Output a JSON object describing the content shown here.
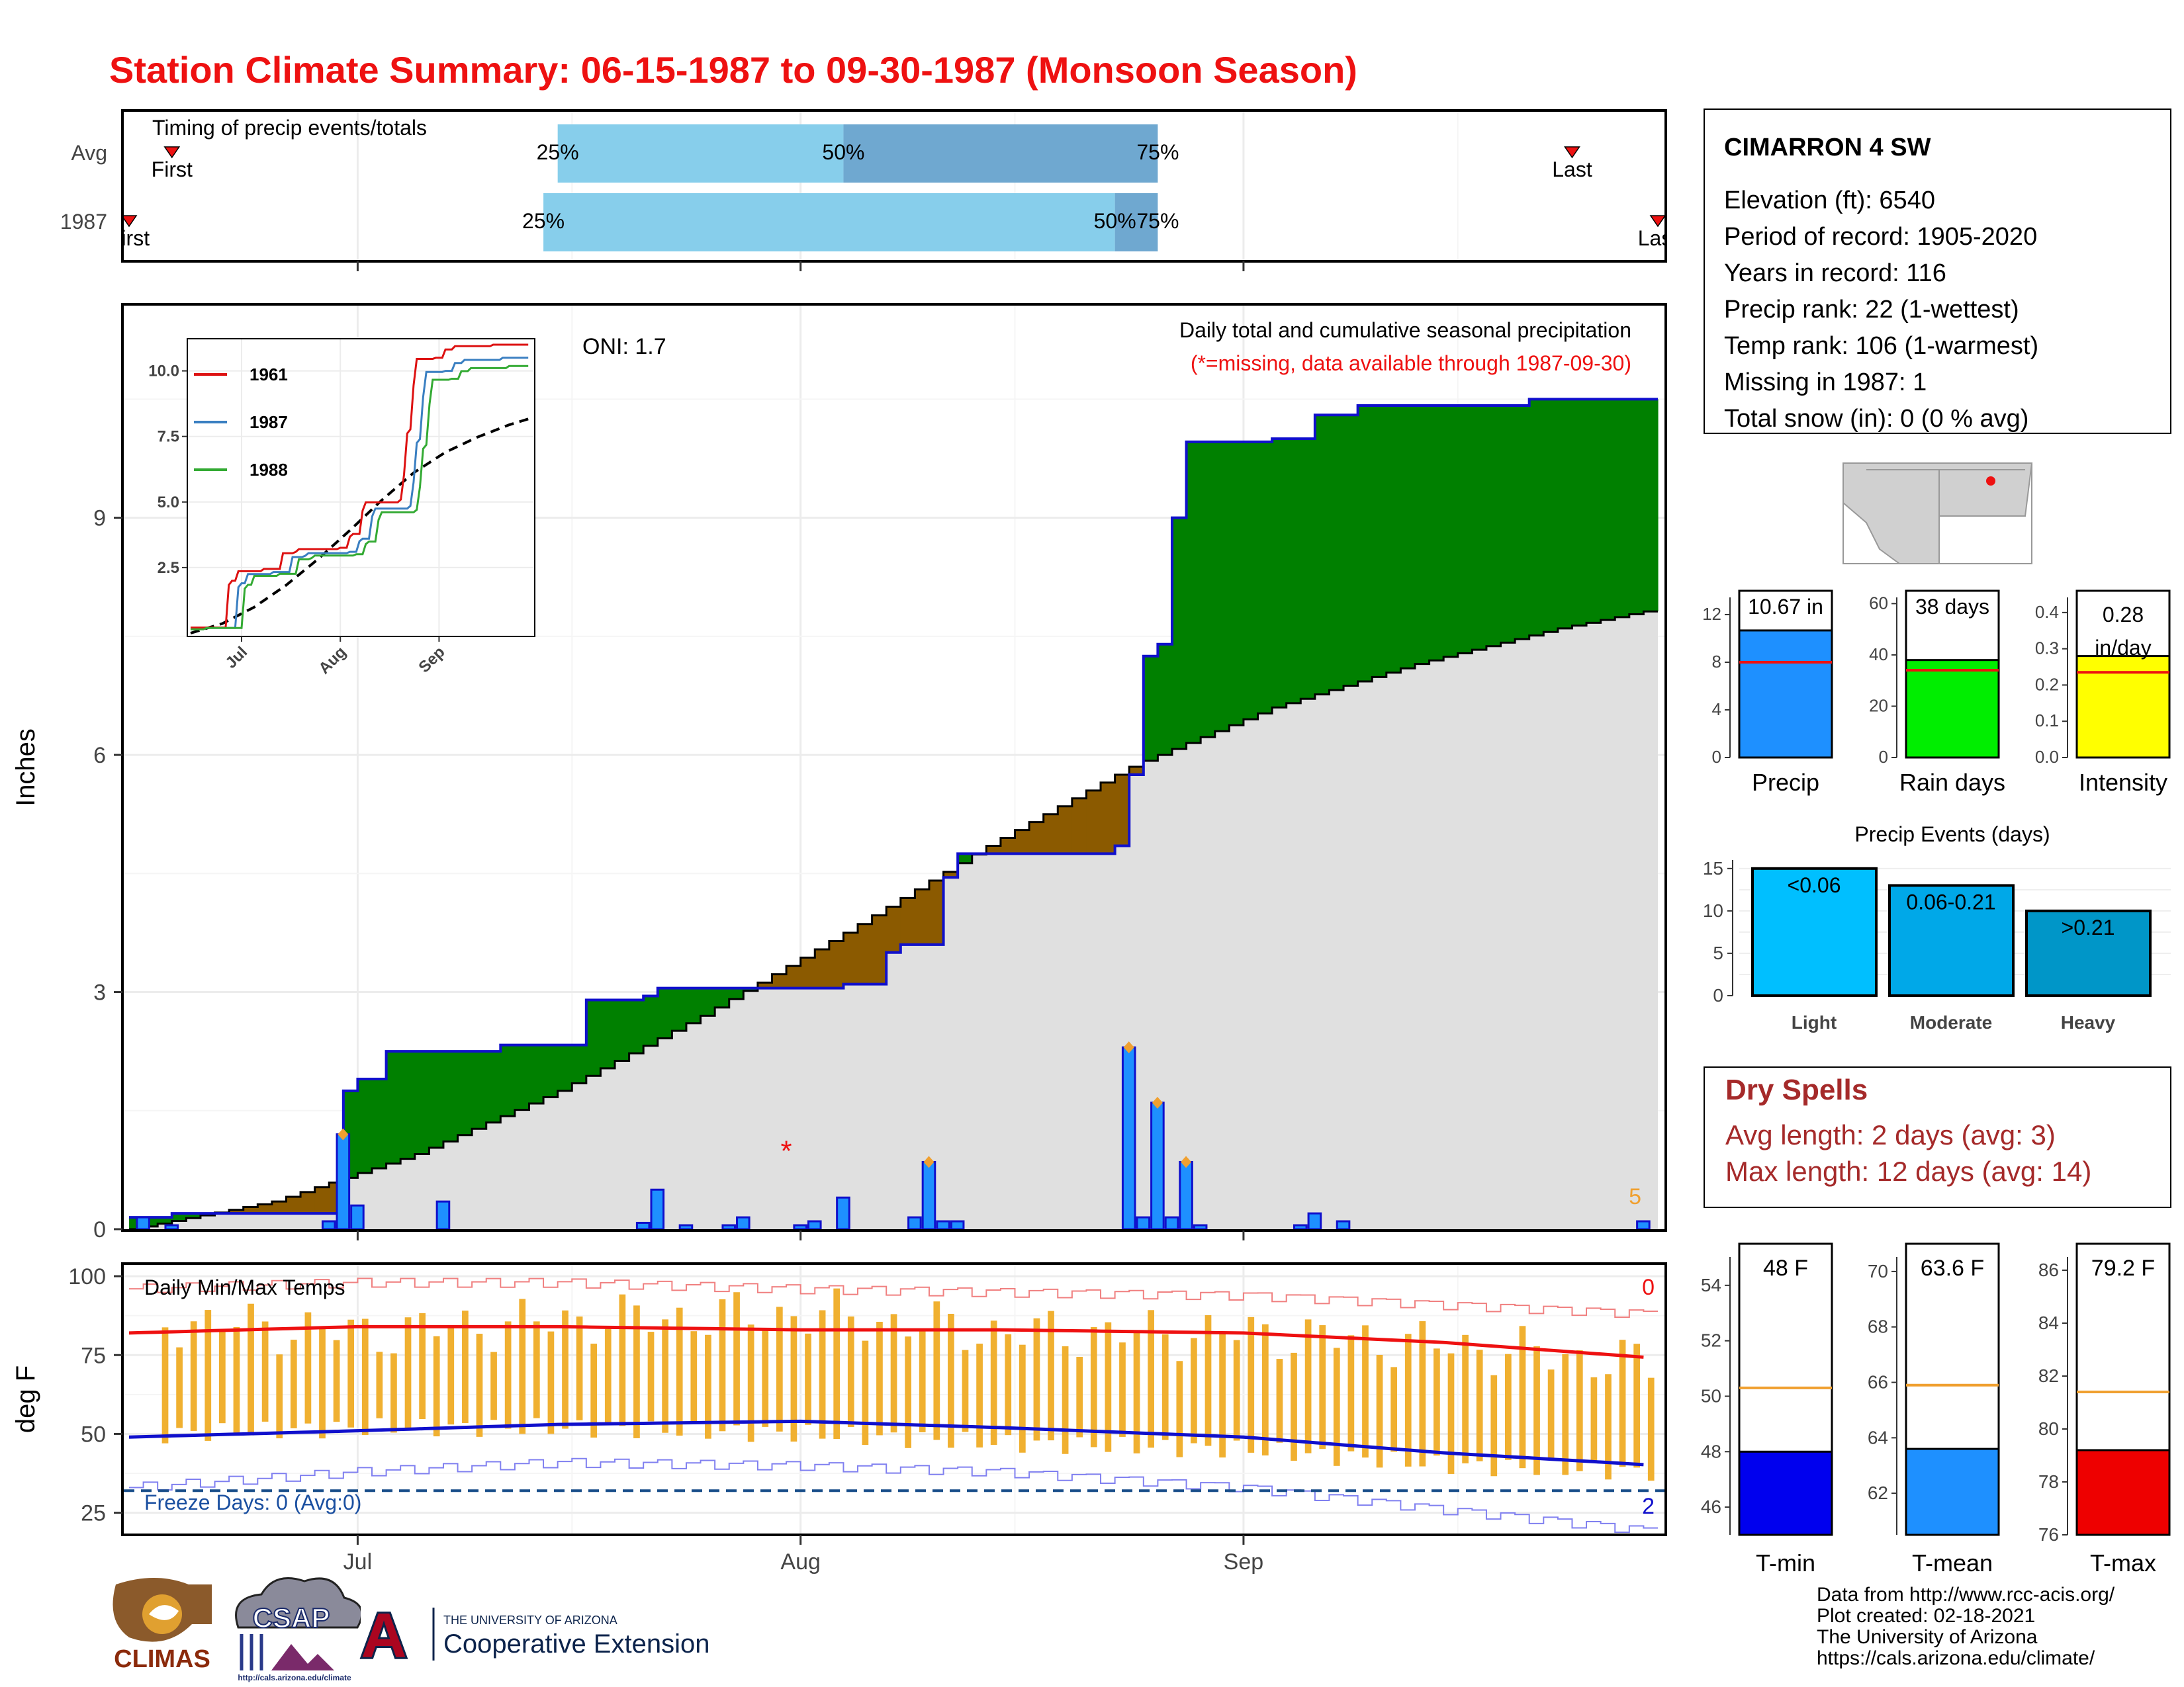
{
  "title": "Station Climate Summary: 06-15-1987 to 09-30-1987 (Monsoon Season)",
  "colors": {
    "title_red": "#ee1111",
    "above_normal": "#008000",
    "below_normal": "#8b5a00",
    "normal_fill": "#e0e0e0",
    "observed_line": "#1010cc",
    "daily_bar": "#1e90ff",
    "temp_bar": "#f0b030",
    "tmax_line": "#ee1111",
    "tmin_line": "#1010cc",
    "dry_spell_text": "#a52a2a",
    "light_bar": "#00bfff",
    "moderate_bar": "#00a8e8",
    "heavy_bar": "#0096c8"
  },
  "time_axis": {
    "tick_labels": [
      "Jul",
      "Aug",
      "Sep"
    ],
    "tick_dates": [
      "1987-07-01",
      "1987-08-01",
      "1987-09-01"
    ],
    "start": "1987-06-15",
    "end": "1987-09-30"
  },
  "timing_panel": {
    "label": "Timing of precip events/totals",
    "rows": [
      {
        "name": "Avg",
        "first_label": "First",
        "first": "1987-06-18",
        "last_label": "Last",
        "last": "1987-09-24",
        "q25": "1987-07-15",
        "q50": "1987-08-04",
        "q75": "1987-08-26",
        "q25_label": "25%",
        "q50_label": "50%",
        "q75_label": "75%"
      },
      {
        "name": "1987",
        "first_label": "First",
        "first": "1987-06-15",
        "last_label": "Last",
        "last": "1987-09-30",
        "q25": "1987-07-14",
        "q50": "1987-08-23",
        "q75": "1987-08-26",
        "q25_label": "25%",
        "q50_label": "50%",
        "q75_label": "75%"
      }
    ]
  },
  "precip_panel": {
    "title": "Daily total and cumulative seasonal precipitation",
    "subtitle": "(*=missing, data available through 1987-09-30)",
    "oni": "ONI: 1.7",
    "ylabel": "Inches",
    "y_ticks": [
      "0",
      "3",
      "6",
      "9"
    ],
    "ylim": [
      0,
      11.7
    ],
    "count_label": "5",
    "missing_marker": "*",
    "missing_date": "1987-07-31",
    "missing_value": 1.0
  },
  "inset": {
    "y_ticks": [
      "2.5",
      "5.0",
      "7.5",
      "10.0"
    ],
    "x_ticks": [
      "Jul",
      "Aug",
      "Sep"
    ],
    "legend": [
      {
        "name": "1961",
        "color": "#dd1111"
      },
      {
        "name": "1987",
        "color": "#3a7fc1"
      },
      {
        "name": "1988",
        "color": "#33aa33"
      }
    ]
  },
  "temp_panel": {
    "label": "Daily Min/Max Temps",
    "ylabel": "deg F",
    "y_ticks": [
      "25",
      "50",
      "75",
      "100"
    ],
    "ylim": [
      18,
      104
    ],
    "freeze_label": "Freeze Days: 0 (Avg:0)",
    "count_top": "0",
    "count_bottom": "2",
    "freeze_line": 32
  },
  "station": {
    "name": "CIMARRON 4 SW",
    "lines": [
      "Elevation (ft): 6540",
      "Period of record: 1905-2020",
      "Years in record: 116",
      "Precip rank: 22 (1-wettest)",
      "Temp rank: 106 (1-warmest)",
      "Missing in 1987: 1",
      "Total snow (in): 0 (0 % avg)"
    ]
  },
  "mini_bars": [
    {
      "label": "Precip",
      "value_label": "10.67 in",
      "value": 10.67,
      "avg": 8.0,
      "ymax": 14,
      "ticks": [
        "0",
        "4",
        "8",
        "12"
      ],
      "tick_values": [
        0,
        4,
        8,
        12
      ],
      "color": "#1e90ff"
    },
    {
      "label": "Rain days",
      "value_label": "38 days",
      "value": 38,
      "avg": 34,
      "ymax": 65,
      "ticks": [
        "0",
        "20",
        "40",
        "60"
      ],
      "tick_values": [
        0,
        20,
        40,
        60
      ],
      "color": "#00ee00"
    },
    {
      "label": "Intensity",
      "value_label": "0.28 in/day",
      "value_line1": "0.28",
      "value_line2": "in/day",
      "value": 0.28,
      "avg": 0.235,
      "ymax": 0.46,
      "ticks": [
        "0.0",
        "0.1",
        "0.2",
        "0.3",
        "0.4"
      ],
      "tick_values": [
        0,
        0.1,
        0.2,
        0.3,
        0.4
      ],
      "color": "#ffff00"
    }
  ],
  "events": {
    "title": "Precip Events (days)",
    "y_ticks": [
      "0",
      "5",
      "10",
      "15"
    ],
    "categories": [
      "Light",
      "Moderate",
      "Heavy"
    ],
    "bins": [
      "<0.06",
      "0.06-0.21",
      ">0.21"
    ],
    "values": [
      15,
      13,
      10
    ]
  },
  "dry_spells": {
    "title": "Dry Spells",
    "avg": "Avg length: 2 days (avg: 3)",
    "max": "Max length: 12 days (avg: 14)"
  },
  "temp_bars": [
    {
      "label": "T-min",
      "value_label": "48 F",
      "value": 48,
      "avg": 50.3,
      "ylim": [
        45,
        55.5
      ],
      "ticks": [
        "46",
        "48",
        "50",
        "52",
        "54"
      ],
      "tick_values": [
        46,
        48,
        50,
        52,
        54
      ],
      "color": "#0000ee"
    },
    {
      "label": "T-mean",
      "value_label": "63.6 F",
      "value": 63.6,
      "avg": 65.9,
      "ylim": [
        60.5,
        71
      ],
      "ticks": [
        "62",
        "64",
        "66",
        "68",
        "70"
      ],
      "tick_values": [
        62,
        64,
        66,
        68,
        70
      ],
      "color": "#1e90ff"
    },
    {
      "label": "T-max",
      "value_label": "79.2 F",
      "value": 79.2,
      "avg": 81.4,
      "ylim": [
        76,
        87
      ],
      "ticks": [
        "76",
        "78",
        "80",
        "82",
        "84",
        "86"
      ],
      "tick_values": [
        76,
        78,
        80,
        82,
        84,
        86
      ],
      "color": "#ee0000"
    }
  ],
  "credits": [
    "Data from http://www.rcc-acis.org/",
    "Plot created: 02-18-2021",
    "The University of Arizona",
    "https://cals.arizona.edu/climate/"
  ],
  "logos": {
    "climas": "CLIMAS",
    "csap": "CSAP",
    "csap_url": "http://cals.arizona.edu/climate",
    "ua_small": "THE UNIVERSITY OF ARIZONA",
    "ua_big": "Cooperative Extension",
    "ua_mark": "A"
  },
  "chart_data": [
    {
      "type": "bar",
      "name": "timing",
      "categories": [
        "Avg",
        "1987"
      ],
      "x_type": "date",
      "q25": [
        "1987-07-15",
        "1987-07-14"
      ],
      "q50": [
        "1987-08-04",
        "1987-08-23"
      ],
      "q75": [
        "1987-08-26",
        "1987-08-26"
      ],
      "first": [
        "1987-06-18",
        "1987-06-15"
      ],
      "last": [
        "1987-09-24",
        "1987-09-30"
      ]
    },
    {
      "type": "area",
      "name": "precipitation",
      "ylabel": "Inches",
      "ylim": [
        0,
        11.7
      ],
      "x_type": "date",
      "normal_cumulative": {
        "x": [
          "1987-06-15",
          "1987-06-25",
          "1987-07-05",
          "1987-07-15",
          "1987-07-25",
          "1987-08-04",
          "1987-08-14",
          "1987-08-24",
          "1987-09-03",
          "1987-09-13",
          "1987-09-23",
          "1987-09-30"
        ],
        "y": [
          0.0,
          0.35,
          0.95,
          1.75,
          2.7,
          3.75,
          4.85,
          5.85,
          6.6,
          7.15,
          7.6,
          7.85
        ]
      },
      "observed_cumulative": {
        "x": [
          "1987-06-15",
          "1987-06-18",
          "1987-06-25",
          "1987-06-30",
          "1987-07-01",
          "1987-07-03",
          "1987-07-10",
          "1987-07-11",
          "1987-07-17",
          "1987-07-21",
          "1987-07-22",
          "1987-07-24",
          "1987-08-03",
          "1987-08-04",
          "1987-08-07",
          "1987-08-08",
          "1987-08-11",
          "1987-08-12",
          "1987-08-23",
          "1987-08-24",
          "1987-08-25",
          "1987-08-26",
          "1987-08-27",
          "1987-08-28",
          "1987-09-03",
          "1987-09-06",
          "1987-09-09",
          "1987-09-12",
          "1987-09-21",
          "1987-09-30"
        ],
        "y": [
          0.15,
          0.2,
          0.2,
          1.75,
          1.9,
          2.25,
          2.25,
          2.33,
          2.9,
          2.95,
          3.05,
          3.05,
          3.05,
          3.1,
          3.5,
          3.6,
          4.45,
          4.75,
          4.85,
          5.75,
          7.25,
          7.4,
          9.0,
          9.96,
          10.0,
          10.3,
          10.42,
          10.42,
          10.5,
          10.67
        ]
      },
      "daily_precip": {
        "x": [
          "1987-06-16",
          "1987-06-18",
          "1987-06-29",
          "1987-06-30",
          "1987-07-01",
          "1987-07-07",
          "1987-07-21",
          "1987-07-22",
          "1987-07-24",
          "1987-07-27",
          "1987-07-28",
          "1987-08-01",
          "1987-08-02",
          "1987-08-04",
          "1987-08-09",
          "1987-08-10",
          "1987-08-11",
          "1987-08-12",
          "1987-08-24",
          "1987-08-25",
          "1987-08-26",
          "1987-08-27",
          "1987-08-28",
          "1987-08-29",
          "1987-09-05",
          "1987-09-06",
          "1987-09-08",
          "1987-09-29"
        ],
        "y": [
          0.15,
          0.05,
          0.1,
          1.2,
          0.3,
          0.35,
          0.08,
          0.5,
          0.05,
          0.05,
          0.15,
          0.05,
          0.1,
          0.4,
          0.15,
          0.85,
          0.1,
          0.1,
          2.3,
          0.15,
          1.6,
          0.15,
          0.85,
          0.05,
          0.05,
          0.2,
          0.1,
          0.1
        ]
      }
    },
    {
      "type": "line",
      "name": "temperatures",
      "ylabel": "deg F",
      "ylim": [
        18,
        104
      ],
      "x_type": "date",
      "series": [
        {
          "name": "avg_max",
          "x": [
            "1987-06-15",
            "1987-07-01",
            "1987-07-15",
            "1987-08-01",
            "1987-08-15",
            "1987-09-01",
            "1987-09-15",
            "1987-09-30"
          ],
          "y": [
            82,
            84,
            84,
            83,
            83,
            82,
            79,
            74
          ]
        },
        {
          "name": "avg_min",
          "x": [
            "1987-06-15",
            "1987-07-01",
            "1987-07-15",
            "1987-08-01",
            "1987-08-15",
            "1987-09-01",
            "1987-09-15",
            "1987-09-30"
          ],
          "y": [
            49,
            51,
            53,
            54,
            52,
            49,
            44,
            40
          ]
        },
        {
          "name": "record_max",
          "x": [
            "1987-06-15",
            "1987-07-01",
            "1987-07-15",
            "1987-08-01",
            "1987-08-15",
            "1987-09-01",
            "1987-09-15",
            "1987-09-30"
          ],
          "y": [
            96,
            98,
            98,
            96,
            95,
            94,
            91,
            88
          ]
        },
        {
          "name": "record_min",
          "x": [
            "1987-06-15",
            "1987-07-01",
            "1987-07-15",
            "1987-08-01",
            "1987-08-15",
            "1987-09-01",
            "1987-09-15",
            "1987-09-30"
          ],
          "y": [
            33,
            38,
            41,
            40,
            38,
            33,
            26,
            19
          ]
        }
      ],
      "daily_max": {
        "x": [
          "1987-06-17",
          "1987-07-01",
          "1987-07-15",
          "1987-08-01",
          "1987-08-15",
          "1987-09-01",
          "1987-09-15",
          "1987-09-29"
        ],
        "y": [
          86,
          82,
          86,
          88,
          82,
          82,
          78,
          72
        ]
      },
      "daily_min": {
        "x": [
          "1987-06-17",
          "1987-07-01",
          "1987-07-15",
          "1987-08-01",
          "1987-08-15",
          "1987-09-01",
          "1987-09-15",
          "1987-09-29"
        ],
        "y": [
          50,
          52,
          52,
          50,
          47,
          45,
          40,
          38
        ]
      }
    }
  ]
}
